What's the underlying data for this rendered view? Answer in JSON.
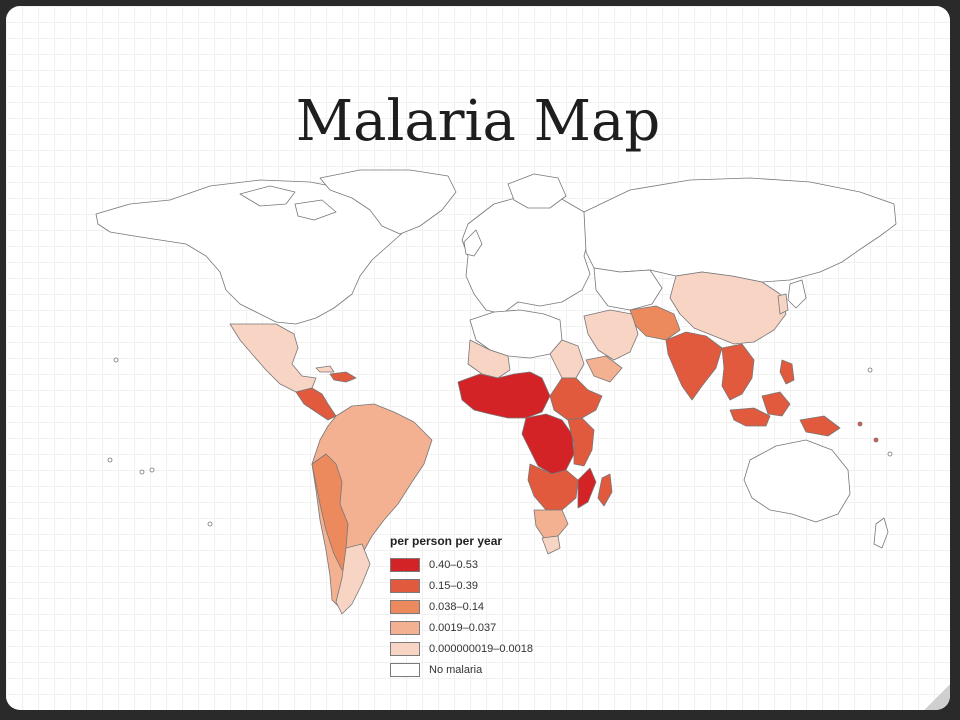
{
  "slide": {
    "title": "Malaria Map"
  },
  "map": {
    "projection": "world-choropleth",
    "border_color": "#777777"
  },
  "legend": {
    "title": "per person per year",
    "classes": [
      {
        "label": "0.40–0.53",
        "color": "#d32327"
      },
      {
        "label": "0.15–0.39",
        "color": "#e15a3d"
      },
      {
        "label": "0.038–0.14",
        "color": "#ec8a5e"
      },
      {
        "label": "0.0019–0.037",
        "color": "#f3b191"
      },
      {
        "label": "0.000000019–0.0018",
        "color": "#f8d4c4"
      },
      {
        "label": "No malaria",
        "color": "#ffffff"
      }
    ]
  }
}
